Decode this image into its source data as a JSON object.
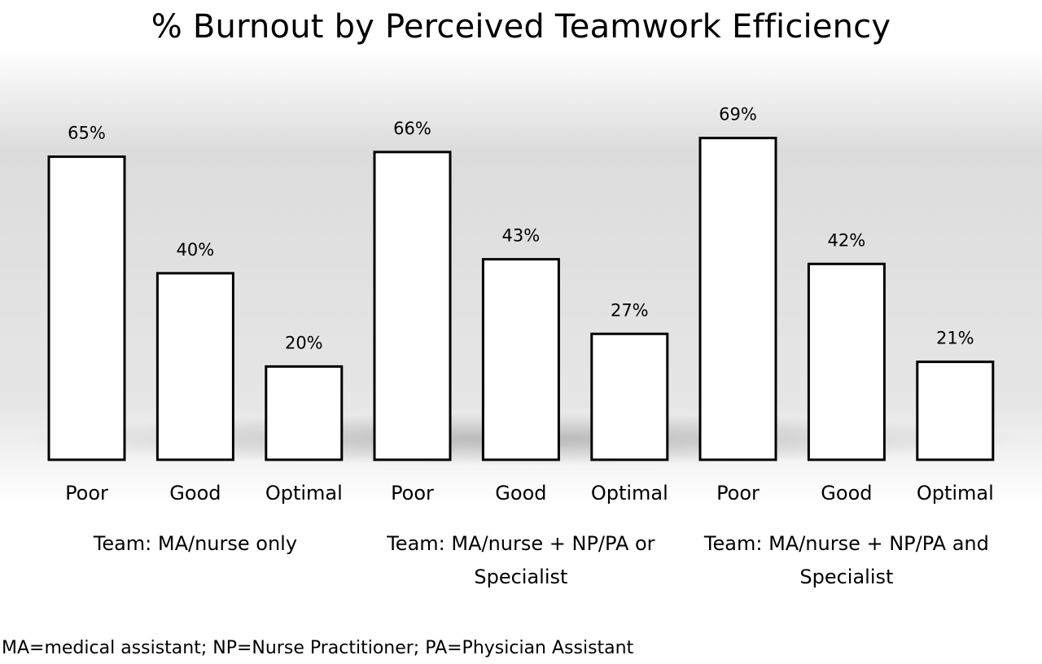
{
  "chart_data": {
    "type": "bar",
    "title": "% Burnout by Perceived Teamwork Efficiency",
    "categories": [
      "Poor",
      "Good",
      "Optimal"
    ],
    "groups": [
      {
        "name": "Team: MA/nurse only",
        "values": [
          65,
          40,
          20
        ],
        "labels": [
          "65%",
          "40%",
          "20%"
        ]
      },
      {
        "name": "Team: MA/nurse + NP/PA or Specialist",
        "values": [
          66,
          43,
          27
        ],
        "labels": [
          "66%",
          "43%",
          "27%"
        ]
      },
      {
        "name": "Team: MA/nurse + NP/PA and Specialist",
        "values": [
          69,
          42,
          21
        ],
        "labels": [
          "69%",
          "42%",
          "21%"
        ]
      }
    ],
    "value_unit": "%",
    "colors": {
      "bar_fill": "#ffffff",
      "bar_stroke": "#000000",
      "background": "#dcdcdc"
    }
  },
  "footnote": "MA=medical assistant; NP=Nurse Practitioner; PA=Physician Assistant"
}
